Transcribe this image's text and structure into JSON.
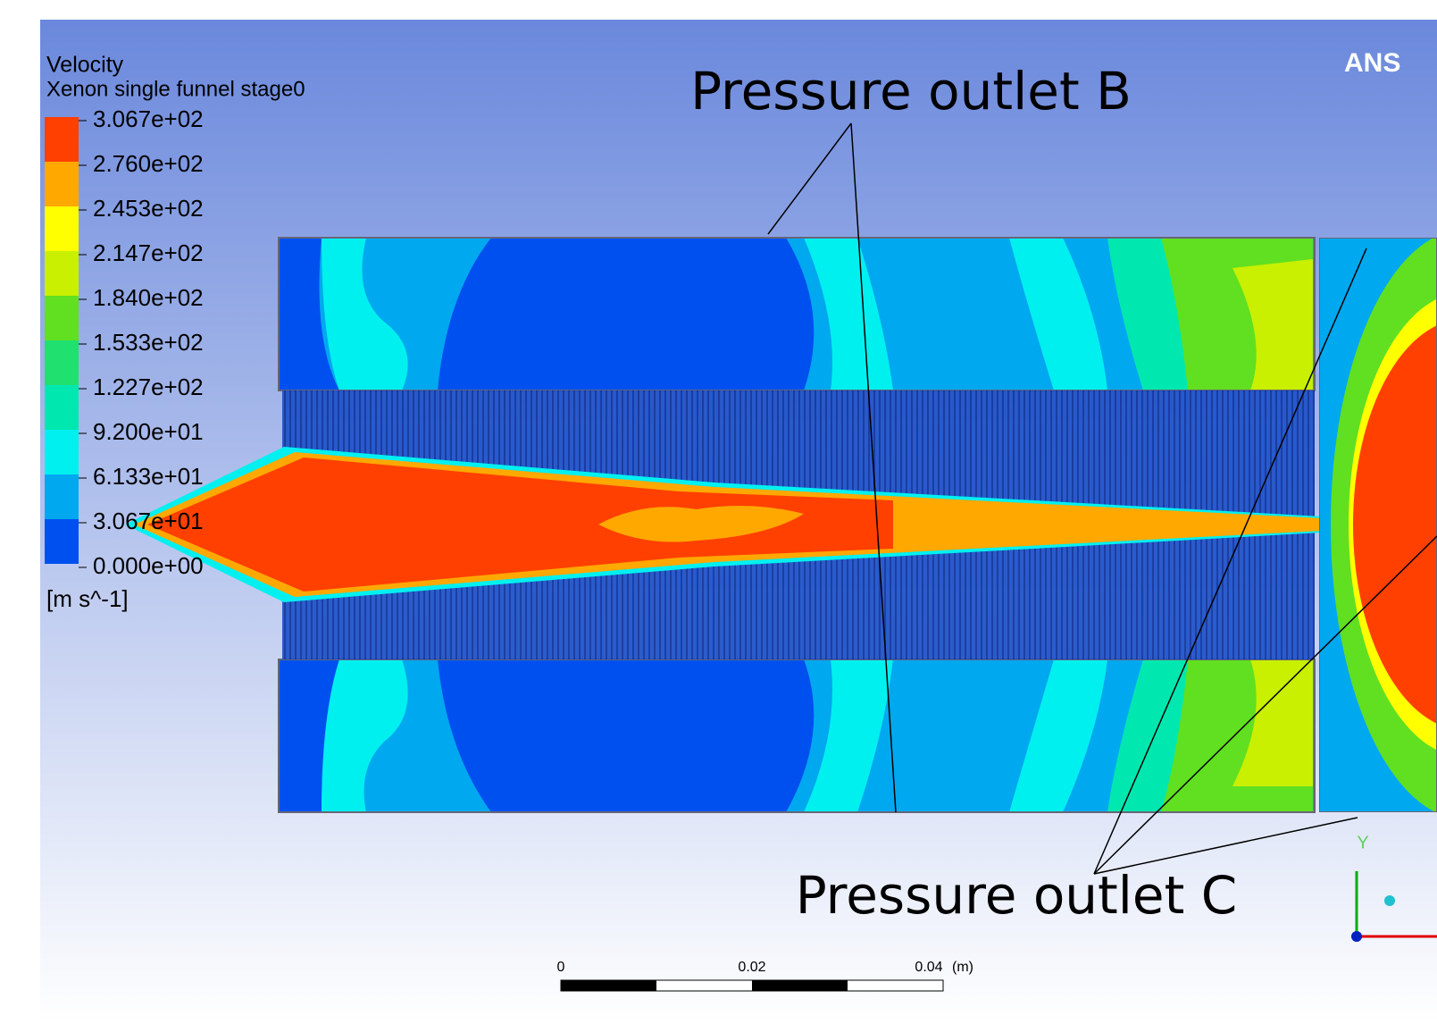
{
  "legend": {
    "title": "Velocity",
    "subtitle": "Xenon single funnel stage0",
    "labels": [
      "3.067e+02",
      "2.760e+02",
      "2.453e+02",
      "2.147e+02",
      "1.840e+02",
      "1.533e+02",
      "1.227e+02",
      "9.200e+01",
      "6.133e+01",
      "3.067e+01",
      "0.000e+00"
    ],
    "colors": [
      "#ff4000",
      "#ffa800",
      "#ffff00",
      "#c8f000",
      "#60e020",
      "#20e070",
      "#00e8b0",
      "#00f0f0",
      "#00a8f0",
      "#0050f0"
    ],
    "unit": "[m s^-1]"
  },
  "annotations": [
    "Pressure outlet B",
    "Pressure outlet C"
  ],
  "brand": "ANS",
  "axis_label": "Y",
  "scale_bar": {
    "labels": [
      "0",
      "0.02",
      "0.04"
    ],
    "unit": "(m)"
  }
}
